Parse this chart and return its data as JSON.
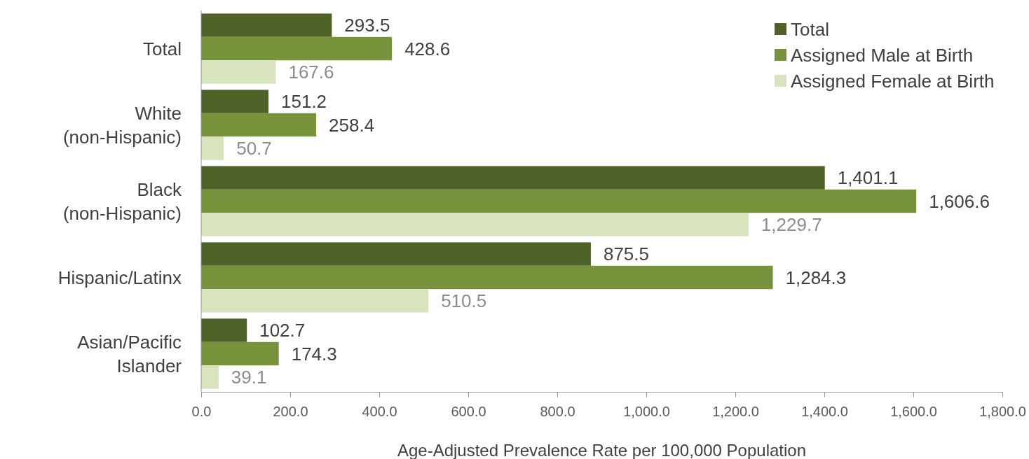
{
  "chart_data": {
    "type": "bar",
    "orientation": "horizontal",
    "xlabel": "Age-Adjusted Prevalence Rate per 100,000 Population",
    "categories": [
      "Total",
      "White (non-Hispanic)",
      "Black (non-Hispanic)",
      "Hispanic/Latinx",
      "Asian/Pacific Islander"
    ],
    "series": [
      {
        "name": "Total",
        "color": "#4f6228",
        "values": [
          293.5,
          151.2,
          1401.1,
          875.5,
          102.7
        ],
        "value_labels": [
          "293.5",
          "151.2",
          "1,401.1",
          "875.5",
          "102.7"
        ]
      },
      {
        "name": "Assigned Male at Birth",
        "color": "#77933c",
        "values": [
          428.6,
          258.4,
          1606.6,
          1284.3,
          174.3
        ],
        "value_labels": [
          "428.6",
          "258.4",
          "1,606.6",
          "1,284.3",
          "174.3"
        ]
      },
      {
        "name": "Assigned Female at Birth",
        "color": "#d7e4bd",
        "values": [
          167.6,
          50.7,
          1229.7,
          510.5,
          39.1
        ],
        "value_labels": [
          "167.6",
          "50.7",
          "1,229.7",
          "510.5",
          "39.1"
        ]
      }
    ],
    "xlim": [
      0,
      1800
    ],
    "xticks": [
      {
        "value": 0,
        "label": "0.0"
      },
      {
        "value": 200,
        "label": "200.0"
      },
      {
        "value": 400,
        "label": "400.0"
      },
      {
        "value": 600,
        "label": "600.0"
      },
      {
        "value": 800,
        "label": "800.0"
      },
      {
        "value": 1000,
        "label": "1,000.0"
      },
      {
        "value": 1200,
        "label": "1,200.0"
      },
      {
        "value": 1400,
        "label": "1,400.0"
      },
      {
        "value": 1600,
        "label": "1,600.0"
      },
      {
        "value": 1800,
        "label": "1,800.0"
      }
    ],
    "grid": false,
    "legend": "top right"
  }
}
